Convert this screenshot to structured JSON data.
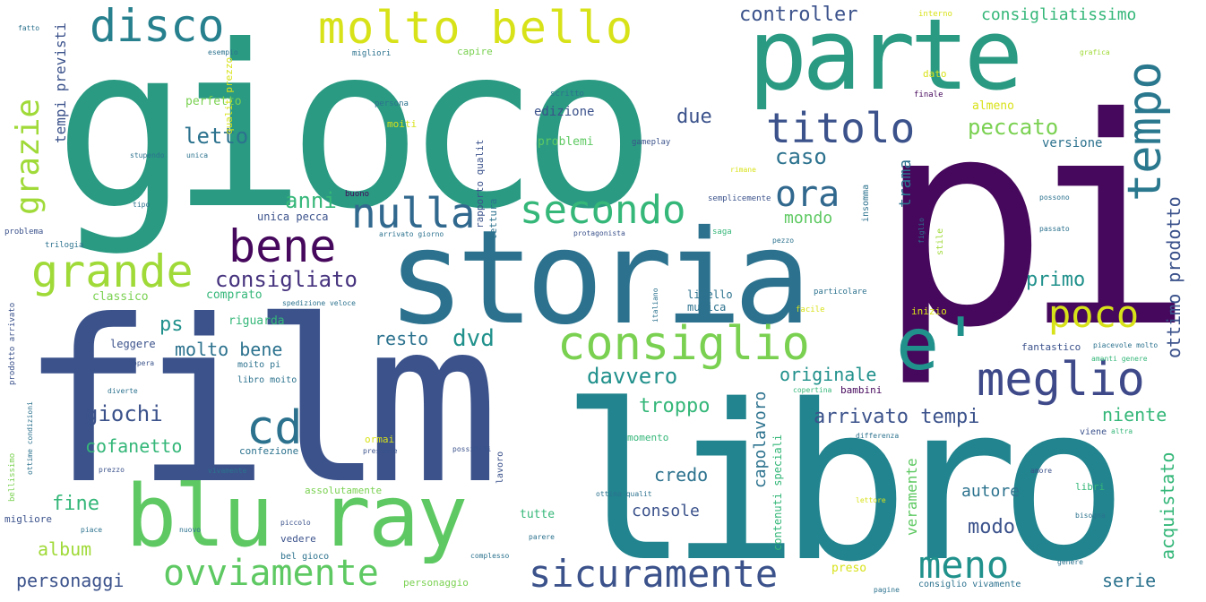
{
  "palette": {
    "dark_purple": "#46085c",
    "indigo": "#3b528b",
    "teal": "#21918c",
    "blue_teal": "#2c728e",
    "green": "#5ec962",
    "light_green": "#a0da39",
    "yellow": "#d8e219"
  },
  "words": [
    {
      "text": "gioco",
      "color": "#2a9a82"
    },
    {
      "text": "pi",
      "color": "#46085c"
    },
    {
      "text": "film",
      "color": "#3b528b"
    },
    {
      "text": "libro",
      "color": "#21848e"
    },
    {
      "text": "storia",
      "color": "#2c728e"
    },
    {
      "text": "parte",
      "color": "#2a9a82"
    },
    {
      "text": "molto bello",
      "color": "#d8e219"
    },
    {
      "text": "disco",
      "color": "#27808e"
    },
    {
      "text": "blu ray",
      "color": "#5ec962"
    },
    {
      "text": "consiglio",
      "color": "#7ad151"
    },
    {
      "text": "e'",
      "color": "#21918c"
    },
    {
      "text": "meglio",
      "color": "#3e4989"
    },
    {
      "text": "tempo",
      "color": "#2a788e"
    },
    {
      "text": "titolo",
      "color": "#3b528b"
    },
    {
      "text": "grande",
      "color": "#a0da39"
    },
    {
      "text": "bene",
      "color": "#46085c"
    },
    {
      "text": "nulla",
      "color": "#31688e"
    },
    {
      "text": "secondo",
      "color": "#35b779"
    },
    {
      "text": "ora",
      "color": "#31688e"
    },
    {
      "text": "cd",
      "color": "#2c728e"
    },
    {
      "text": "ovviamente",
      "color": "#5ec962"
    },
    {
      "text": "sicuramente",
      "color": "#3b528b"
    },
    {
      "text": "meno",
      "color": "#21918c"
    },
    {
      "text": "poco",
      "color": "#d8e219"
    },
    {
      "text": "grazie",
      "color": "#a0da39"
    },
    {
      "text": "consigliato",
      "color": "#46337e"
    },
    {
      "text": "controller",
      "color": "#3b528b"
    },
    {
      "text": "consigliatissimo",
      "color": "#35b779"
    },
    {
      "text": "peccato",
      "color": "#7ad151"
    },
    {
      "text": "tempi previsti",
      "color": "#3b528b"
    },
    {
      "text": "letto",
      "color": "#2c728e"
    },
    {
      "text": "anni",
      "color": "#35b779"
    },
    {
      "text": "caso",
      "color": "#2c728e"
    },
    {
      "text": "due",
      "color": "#3b528b"
    },
    {
      "text": "mondo",
      "color": "#5ec962"
    },
    {
      "text": "trama",
      "color": "#2c728e"
    },
    {
      "text": "primo",
      "color": "#21918c"
    },
    {
      "text": "ottimo prodotto",
      "color": "#3b528b"
    },
    {
      "text": "dvd",
      "color": "#21918c"
    },
    {
      "text": "resto",
      "color": "#2c728e"
    },
    {
      "text": "ps",
      "color": "#21918c"
    },
    {
      "text": "molto bene",
      "color": "#2c728e"
    },
    {
      "text": "davvero",
      "color": "#21918c"
    },
    {
      "text": "originale",
      "color": "#21918c"
    },
    {
      "text": "giochi",
      "color": "#3b528b"
    },
    {
      "text": "cofanetto",
      "color": "#35b779"
    },
    {
      "text": "troppo",
      "color": "#35b779"
    },
    {
      "text": "arrivato tempi",
      "color": "#3b528b"
    },
    {
      "text": "niente",
      "color": "#35b779"
    },
    {
      "text": "acquistato",
      "color": "#35b779"
    },
    {
      "text": "capolavoro",
      "color": "#2c728e"
    },
    {
      "text": "credo",
      "color": "#2c728e"
    },
    {
      "text": "console",
      "color": "#3b528b"
    },
    {
      "text": "modo",
      "color": "#3b528b"
    },
    {
      "text": "autore",
      "color": "#2c728e"
    },
    {
      "text": "serie",
      "color": "#2c728e"
    },
    {
      "text": "fine",
      "color": "#35b779"
    },
    {
      "text": "album",
      "color": "#a0da39"
    },
    {
      "text": "personaggi",
      "color": "#3b528b"
    },
    {
      "text": "veramente",
      "color": "#5ec962"
    },
    {
      "text": "edizione",
      "color": "#3b528b"
    },
    {
      "text": "problemi",
      "color": "#5ec962"
    },
    {
      "text": "versione",
      "color": "#2c728e"
    },
    {
      "text": "perfetto",
      "color": "#7ad151"
    },
    {
      "text": "comprato",
      "color": "#35b779"
    },
    {
      "text": "classico",
      "color": "#7ad151"
    },
    {
      "text": "riguarda",
      "color": "#35b779"
    },
    {
      "text": "leggere",
      "color": "#3b528b"
    },
    {
      "text": "unica pecca",
      "color": "#3b528b"
    },
    {
      "text": "livello",
      "color": "#2c728e"
    },
    {
      "text": "musica",
      "color": "#2c728e"
    },
    {
      "text": "fantastico",
      "color": "#3b528b"
    },
    {
      "text": "capire",
      "color": "#7ad151"
    },
    {
      "text": "migliori",
      "color": "#2c728e"
    },
    {
      "text": "interno",
      "color": "#d8e219"
    },
    {
      "text": "qualit prezzo",
      "color": "#d8e219"
    },
    {
      "text": "moito pi",
      "color": "#2c728e"
    },
    {
      "text": "libro moito",
      "color": "#2c728e"
    },
    {
      "text": "ormai",
      "color": "#d8e219"
    },
    {
      "text": "confezione",
      "color": "#2c728e"
    },
    {
      "text": "assolutamente",
      "color": "#7ad151"
    },
    {
      "text": "tutte",
      "color": "#35b779"
    },
    {
      "text": "preso",
      "color": "#d8e219"
    },
    {
      "text": "vedere",
      "color": "#3b528b"
    },
    {
      "text": "momento",
      "color": "#35b779"
    },
    {
      "text": "lettura",
      "color": "#2c728e"
    },
    {
      "text": "lavoro",
      "color": "#3b528b"
    },
    {
      "text": "bel gioco",
      "color": "#2c728e"
    },
    {
      "text": "migliore",
      "color": "#3b528b"
    },
    {
      "text": "personaggio",
      "color": "#7ad151"
    },
    {
      "text": "consiglio vivamente",
      "color": "#2c728e"
    },
    {
      "text": "bambini",
      "color": "#46085c"
    },
    {
      "text": "libri",
      "color": "#35b779"
    },
    {
      "text": "inizio",
      "color": "#d8e219"
    },
    {
      "text": "contenuti speciali",
      "color": "#35b779"
    },
    {
      "text": "rapporto qualit",
      "color": "#3b528b"
    },
    {
      "text": "insomma",
      "color": "#2c728e"
    },
    {
      "text": "stile",
      "color": "#a0da39"
    },
    {
      "text": "gameplay",
      "color": "#3b528b"
    },
    {
      "text": "saga",
      "color": "#35b779"
    },
    {
      "text": "semplicemente",
      "color": "#3b528b"
    },
    {
      "text": "problema",
      "color": "#3b528b"
    },
    {
      "text": "trilogia",
      "color": "#2c728e"
    },
    {
      "text": "buono",
      "color": "#46085c"
    },
    {
      "text": "moiti",
      "color": "#d8e219"
    },
    {
      "text": "persona",
      "color": "#2c728e"
    },
    {
      "text": "scritto",
      "color": "#2c728e"
    },
    {
      "text": "almeno",
      "color": "#d8e219"
    },
    {
      "text": "dato",
      "color": "#d8e219"
    },
    {
      "text": "finale",
      "color": "#46085c"
    },
    {
      "text": "fatto",
      "color": "#2c728e"
    },
    {
      "text": "esempio",
      "color": "#2c728e"
    },
    {
      "text": "tipo",
      "color": "#2c728e"
    },
    {
      "text": "stupendo",
      "color": "#2c728e"
    },
    {
      "text": "unica",
      "color": "#2c728e"
    },
    {
      "text": "possono",
      "color": "#2c728e"
    },
    {
      "text": "passato",
      "color": "#2c728e"
    },
    {
      "text": "figlio",
      "color": "#2c728e"
    },
    {
      "text": "piacevole molto",
      "color": "#2c728e"
    },
    {
      "text": "amanti genere",
      "color": "#35b779"
    },
    {
      "text": "spedizione veloce",
      "color": "#2c728e"
    },
    {
      "text": "arrivato giorno",
      "color": "#2c728e"
    },
    {
      "text": "protagonista",
      "color": "#3b528b"
    },
    {
      "text": "pezzo",
      "color": "#2c728e"
    },
    {
      "text": "particolare",
      "color": "#2c728e"
    },
    {
      "text": "facile",
      "color": "#d8e219"
    },
    {
      "text": "prodotto arrivato",
      "color": "#3b528b"
    },
    {
      "text": "diverte",
      "color": "#2c728e"
    },
    {
      "text": "ottime condizioni",
      "color": "#2c728e"
    },
    {
      "text": "bellissimo",
      "color": "#7ad151"
    },
    {
      "text": "presente",
      "color": "#3b528b"
    },
    {
      "text": "possibili",
      "color": "#3b528b"
    },
    {
      "text": "prezzo",
      "color": "#3b528b"
    },
    {
      "text": "piccolo",
      "color": "#3b528b"
    },
    {
      "text": "parere",
      "color": "#2c728e"
    },
    {
      "text": "complesso",
      "color": "#2c728e"
    },
    {
      "text": "vivamente",
      "color": "#2c728e"
    },
    {
      "text": "piace",
      "color": "#2c728e"
    },
    {
      "text": "nuovo",
      "color": "#2c728e"
    },
    {
      "text": "genere",
      "color": "#2c728e"
    },
    {
      "text": "pagine",
      "color": "#2c728e"
    },
    {
      "text": "bisogna",
      "color": "#2c728e"
    },
    {
      "text": "ottima qualit",
      "color": "#2c728e"
    },
    {
      "text": "amore",
      "color": "#3b528b"
    },
    {
      "text": "lettore",
      "color": "#d8e219"
    },
    {
      "text": "differenza",
      "color": "#2c728e"
    },
    {
      "text": "viene",
      "color": "#3b528b"
    },
    {
      "text": "altra",
      "color": "#35b779"
    },
    {
      "text": "copertina",
      "color": "#35b779"
    },
    {
      "text": "grafica",
      "color": "#a0da39"
    },
    {
      "text": "rimane",
      "color": "#d8e219"
    },
    {
      "text": "opera",
      "color": "#3b528b"
    },
    {
      "text": "italiano",
      "color": "#2c728e"
    }
  ]
}
